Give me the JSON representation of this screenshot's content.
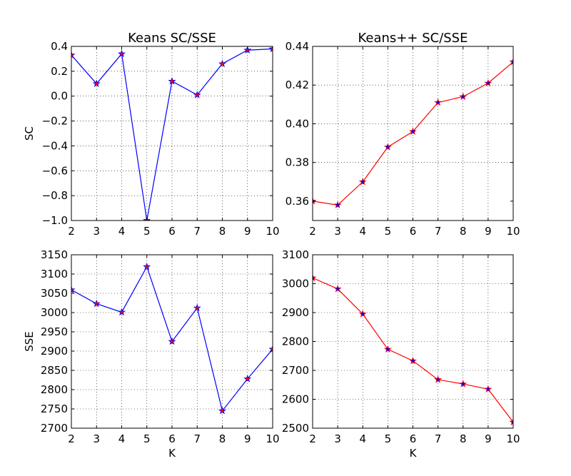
{
  "chart_data": [
    {
      "type": "line",
      "title": "Keans SC/SSE",
      "xlabel": "",
      "ylabel": "SC",
      "x": [
        2,
        3,
        4,
        5,
        6,
        7,
        8,
        9,
        10
      ],
      "xlim": [
        2,
        10
      ],
      "ylim": [
        -1.0,
        0.4
      ],
      "xticks": [
        "2",
        "3",
        "4",
        "5",
        "6",
        "7",
        "8",
        "9",
        "10"
      ],
      "xtick_values": [
        2,
        3,
        4,
        5,
        6,
        7,
        8,
        9,
        10
      ],
      "yticks": [
        "−1.0",
        "−0.8",
        "−0.6",
        "−0.4",
        "−0.2",
        "0.0",
        "0.2",
        "0.4"
      ],
      "ytick_values": [
        -1.0,
        -0.8,
        -0.6,
        -0.4,
        -0.2,
        0.0,
        0.2,
        0.4
      ],
      "grid": true,
      "line_color": "#0000ff",
      "marker_color": "#ff0000",
      "values": [
        0.33,
        0.1,
        0.34,
        -1.0,
        0.12,
        0.01,
        0.26,
        0.37,
        0.38
      ]
    },
    {
      "type": "line",
      "title": "Keans++ SC/SSE",
      "xlabel": "",
      "ylabel": "",
      "x": [
        2,
        3,
        4,
        5,
        6,
        7,
        8,
        9,
        10
      ],
      "xlim": [
        2,
        10
      ],
      "ylim": [
        0.35,
        0.44
      ],
      "xticks": [
        "2",
        "3",
        "4",
        "5",
        "6",
        "7",
        "8",
        "9",
        "10"
      ],
      "xtick_values": [
        2,
        3,
        4,
        5,
        6,
        7,
        8,
        9,
        10
      ],
      "yticks": [
        "0.36",
        "0.38",
        "0.40",
        "0.42",
        "0.44"
      ],
      "ytick_values": [
        0.36,
        0.38,
        0.4,
        0.42,
        0.44
      ],
      "grid": true,
      "line_color": "#ff0000",
      "marker_color": "#0000ff",
      "values": [
        0.36,
        0.358,
        0.37,
        0.388,
        0.396,
        0.411,
        0.414,
        0.421,
        0.432
      ]
    },
    {
      "type": "line",
      "title": "",
      "xlabel": "K",
      "ylabel": "SSE",
      "x": [
        2,
        3,
        4,
        5,
        6,
        7,
        8,
        9,
        10
      ],
      "xlim": [
        2,
        10
      ],
      "ylim": [
        2700,
        3150
      ],
      "xticks": [
        "2",
        "3",
        "4",
        "5",
        "6",
        "7",
        "8",
        "9",
        "10"
      ],
      "xtick_values": [
        2,
        3,
        4,
        5,
        6,
        7,
        8,
        9,
        10
      ],
      "yticks": [
        "2700",
        "2750",
        "2800",
        "2850",
        "2900",
        "2950",
        "3000",
        "3050",
        "3100",
        "3150"
      ],
      "ytick_values": [
        2700,
        2750,
        2800,
        2850,
        2900,
        2950,
        3000,
        3050,
        3100,
        3150
      ],
      "grid": true,
      "line_color": "#0000ff",
      "marker_color": "#ff0000",
      "values": [
        3059,
        3023,
        3001,
        3119,
        2925,
        3012,
        2745,
        2828,
        2905
      ]
    },
    {
      "type": "line",
      "title": "",
      "xlabel": "K",
      "ylabel": "",
      "x": [
        2,
        3,
        4,
        5,
        6,
        7,
        8,
        9,
        10
      ],
      "xlim": [
        2,
        10
      ],
      "ylim": [
        2500,
        3100
      ],
      "xticks": [
        "2",
        "3",
        "4",
        "5",
        "6",
        "7",
        "8",
        "9",
        "10"
      ],
      "xtick_values": [
        2,
        3,
        4,
        5,
        6,
        7,
        8,
        9,
        10
      ],
      "yticks": [
        "2500",
        "2600",
        "2700",
        "2800",
        "2900",
        "3000",
        "3100"
      ],
      "ytick_values": [
        2500,
        2600,
        2700,
        2800,
        2900,
        3000,
        3100
      ],
      "grid": true,
      "line_color": "#ff0000",
      "marker_color": "#0000ff",
      "values": [
        3020,
        2982,
        2895,
        2773,
        2733,
        2668,
        2653,
        2635,
        2521
      ]
    }
  ]
}
